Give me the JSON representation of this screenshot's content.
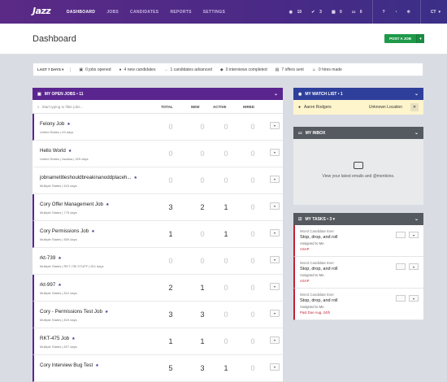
{
  "nav": {
    "logo": "Jazz",
    "links": [
      "DASHBOARD",
      "JOBS",
      "CANDIDATES",
      "REPORTS",
      "SETTINGS"
    ],
    "stats": [
      "10",
      "3",
      "0",
      "0"
    ],
    "user": "CT"
  },
  "page": {
    "title": "Dashboard",
    "post_job": "POST A JOB"
  },
  "stats": {
    "range": "LAST 7 DAYS ▾",
    "items": [
      "0 jobs opened",
      "4 new candidates",
      "1 candidates advanced",
      "0 interviews completed",
      "7 offers sent",
      "0 hires made"
    ]
  },
  "jobs": {
    "title": "MY OPEN JOBS  •  11",
    "filter_placeholder": "Start typing to filter jobs...",
    "columns": [
      "TOTAL",
      "NEW",
      "ACTIVE",
      "HIRED"
    ],
    "rows": [
      {
        "name": "Felony Job",
        "sub": "United States  |  63 days",
        "total": "0",
        "new": "0",
        "active": "0",
        "hired": "0"
      },
      {
        "name": "Hello World",
        "sub": "United States  |  dsadsa  |  329 days",
        "total": "0",
        "new": "0",
        "active": "0",
        "hired": "0"
      },
      {
        "name": "jobnametitleshouldbreakinanoddplaceh...",
        "sub": "Multiple States  |  615 days",
        "total": "0",
        "new": "0",
        "active": "0",
        "hired": "0"
      },
      {
        "name": "Cory Offer Management Job",
        "sub": "Multiple States  |  775 days",
        "total": "3",
        "new": "2",
        "active": "1",
        "hired": "0"
      },
      {
        "name": "Cory Permissions Job",
        "sub": "Multiple States  |  809 days",
        "total": "1",
        "new": "0",
        "active": "1",
        "hired": "0"
      },
      {
        "name": "rkt-739",
        "sub": "Multiple States  |  RKT-730 STUFF  |  811 days",
        "total": "0",
        "new": "0",
        "active": "0",
        "hired": "0"
      },
      {
        "name": "rkt-997",
        "sub": "Multiple States  |  812 days",
        "total": "2",
        "new": "1",
        "active": "0",
        "hired": "0"
      },
      {
        "name": "Cory - Permissions Test Job",
        "sub": "Multiple States  |  819 days",
        "total": "3",
        "new": "3",
        "active": "0",
        "hired": "0"
      },
      {
        "name": "RKT-475 Job",
        "sub": "Multiple States  |  827 days",
        "total": "1",
        "new": "1",
        "active": "0",
        "hired": "0"
      },
      {
        "name": "Cory Interview Bug Test",
        "sub": "",
        "total": "5",
        "new": "3",
        "active": "1",
        "hired": "0"
      }
    ]
  },
  "watch": {
    "title": "MY WATCH LIST  •  1",
    "name": "Aaron Rodgers",
    "location": "Unknown Location"
  },
  "inbox": {
    "title": "MY INBOX",
    "message": "View your latest emails and @mentions."
  },
  "tasks": {
    "title": "MY TASKS  •  3  ▾",
    "items": [
      {
        "candidate": "Worst Candidate Ever",
        "title": "Stop, drop, and roll",
        "assigned": "Assigned to Me",
        "due": "ASAP"
      },
      {
        "candidate": "Worst Candidate Ever",
        "title": "Stop, drop, and roll",
        "assigned": "Assigned to Me",
        "due": "ASAP"
      },
      {
        "candidate": "Worst Candidate Ever",
        "title": "Stop, drop, and roll",
        "assigned": "Assigned to Me",
        "due": "Past Due Aug. 24th"
      }
    ]
  }
}
